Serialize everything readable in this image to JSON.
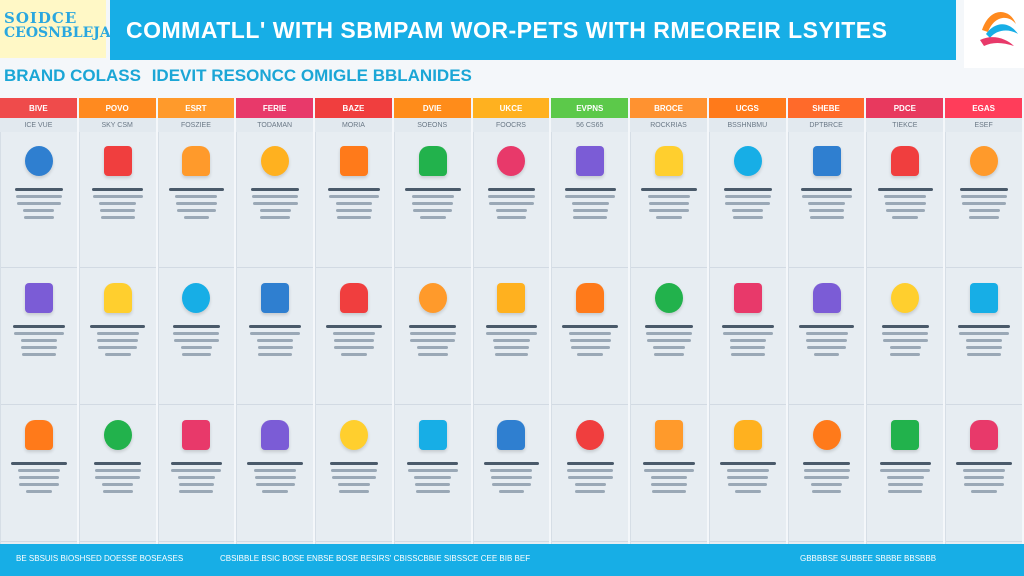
{
  "logo": {
    "line1": "SOIDCE",
    "line2": "CEOSNBLEJA"
  },
  "banner": {
    "title": "COMMATLL' WITH SBMPAM WOR-PETS WITH RMEOREIR LSYITES"
  },
  "subtitle": {
    "part1": "BRAND COLASS",
    "part2": "IDEVIT RESONCC OMIGLE BBLANIDES"
  },
  "columns": [
    {
      "color": "#ef4b4b",
      "head": "BIVE",
      "sub": "ICE VUE"
    },
    {
      "color": "#ff8a1f",
      "head": "POVO",
      "sub": "SKY CSM"
    },
    {
      "color": "#ff9a2b",
      "head": "ESRT",
      "sub": "FOSZIEE"
    },
    {
      "color": "#e8396a",
      "head": "FERIE",
      "sub": "TODAMAN"
    },
    {
      "color": "#f03e3e",
      "head": "BAZE",
      "sub": "MORIA"
    },
    {
      "color": "#ff8c1a",
      "head": "DVIE",
      "sub": "SOEONS"
    },
    {
      "color": "#ffb11f",
      "head": "UKCE",
      "sub": "FOOCRS"
    },
    {
      "color": "#5cc94a",
      "head": "EVPNS",
      "sub": "56 CS65"
    },
    {
      "color": "#ff9230",
      "head": "BROCE",
      "sub": "ROCKRIAS"
    },
    {
      "color": "#ff7a1a",
      "head": "UCGS",
      "sub": "BSSHNBMU"
    },
    {
      "color": "#ff6a2a",
      "head": "SHEBE",
      "sub": "DPTBRCE"
    },
    {
      "color": "#e8395e",
      "head": "PDCE",
      "sub": "TIEKCE"
    },
    {
      "color": "#ff3d5a",
      "head": "EGAS",
      "sub": "ESEF"
    }
  ],
  "footer": {
    "left": "BE SBSUIS BIOSHSED DOESSE BOSEASES",
    "center": "CBSIBBLE BSIC BOSE ENBSE BOSE BESIRS' CBISSCBBIE SIBSSCE CEE BIB BEF",
    "right": "GBBBBSE SUBBEE SBBBE BBSBBB"
  }
}
